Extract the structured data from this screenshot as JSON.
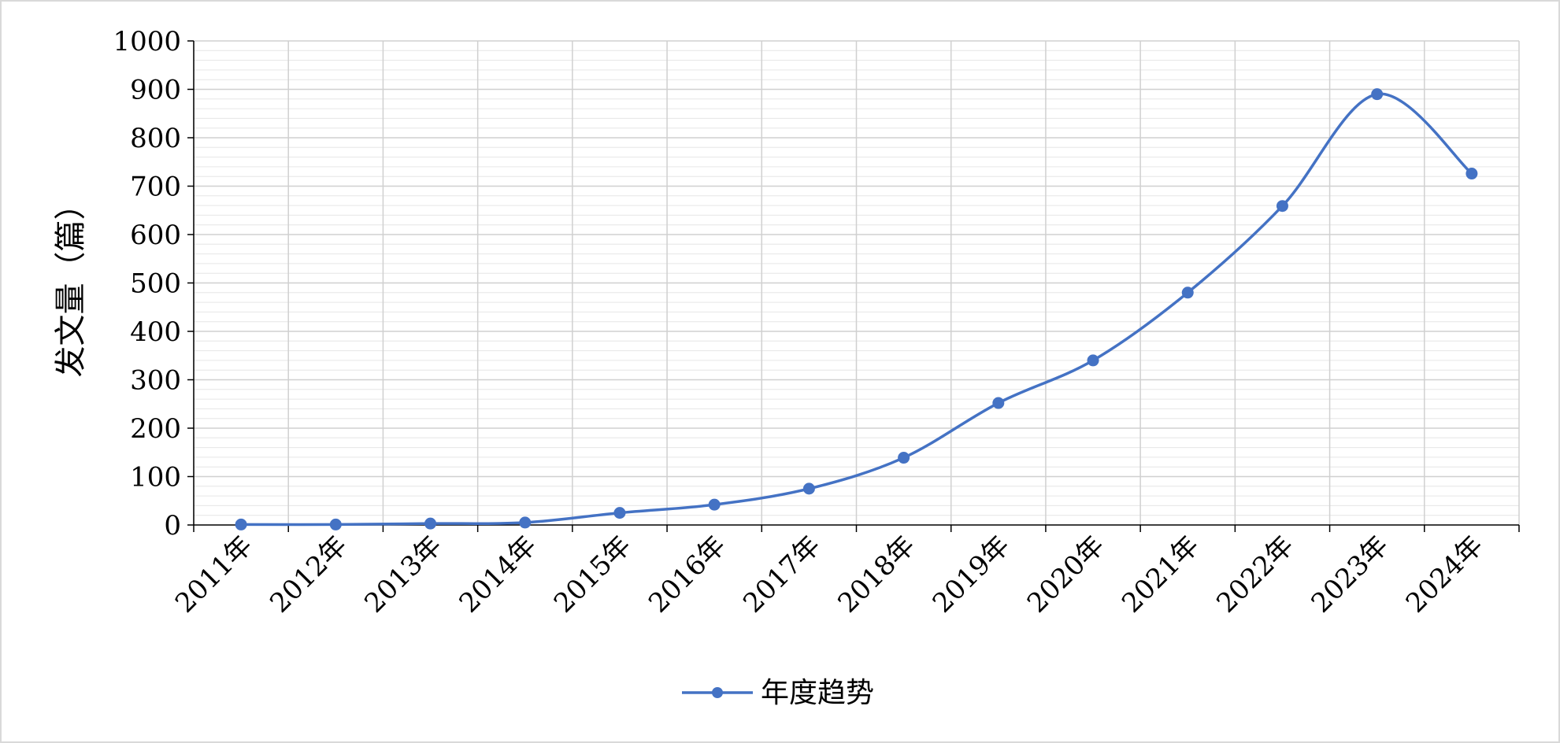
{
  "chart_data": {
    "type": "line",
    "title": "",
    "xlabel": "",
    "ylabel": "发文量（篇）",
    "ylim": [
      0,
      1000
    ],
    "y_ticks": [
      "0",
      "100",
      "200",
      "300",
      "400",
      "500",
      "600",
      "700",
      "800",
      "900",
      "1000"
    ],
    "categories": [
      "2011年",
      "2012年",
      "2013年",
      "2014年",
      "2015年",
      "2016年",
      "2017年",
      "2018年",
      "2019年",
      "2020年",
      "2021年",
      "2022年",
      "2023年",
      "2024年"
    ],
    "series": [
      {
        "name": "年度趋势",
        "values": [
          1,
          1,
          3,
          5,
          25,
          42,
          75,
          139,
          252,
          340,
          480,
          659,
          890,
          726
        ],
        "color": "#4472c4",
        "smooth": true,
        "markers": true
      }
    ],
    "grid": true,
    "legend_position": "bottom"
  }
}
